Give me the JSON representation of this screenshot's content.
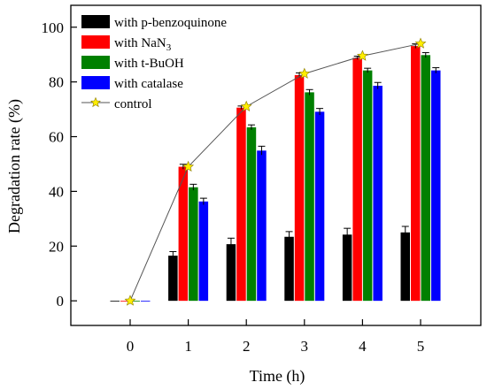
{
  "chart_data": {
    "type": "bar",
    "title": "",
    "xlabel": "Time (h)",
    "ylabel": "Degradation rate (%)",
    "categories": [
      "0",
      "1",
      "2",
      "3",
      "4",
      "5"
    ],
    "ylim": [
      -9,
      108
    ],
    "yticks": [
      0,
      20,
      40,
      60,
      80,
      100
    ],
    "grid": false,
    "legend_position": "top-left",
    "series": [
      {
        "name": "with p-benzoquinone",
        "type": "bar",
        "color": "#000000",
        "values": [
          0,
          16.5,
          20.7,
          23.4,
          24.2,
          25.0
        ],
        "errors": [
          0,
          1.5,
          2.2,
          1.9,
          2.3,
          2.2
        ]
      },
      {
        "name": "with NaN3",
        "name_main": "with NaN",
        "name_sub": "3",
        "type": "bar",
        "color": "#ff0000",
        "values": [
          0,
          49.0,
          70.6,
          82.5,
          88.8,
          93.1
        ],
        "errors": [
          0,
          0.9,
          0.6,
          0.8,
          0.6,
          0.8
        ]
      },
      {
        "name": "with t-BuOH",
        "type": "bar",
        "color": "#008000",
        "values": [
          0,
          41.5,
          63.4,
          76.2,
          84.2,
          89.8
        ],
        "errors": [
          0,
          1.1,
          0.9,
          1.0,
          0.8,
          0.9
        ]
      },
      {
        "name": "with catalase",
        "type": "bar",
        "color": "#0000ff",
        "values": [
          0,
          36.3,
          54.9,
          69.1,
          78.6,
          84.2
        ],
        "errors": [
          0,
          1.2,
          1.6,
          1.2,
          1.2,
          1.0
        ]
      },
      {
        "name": "control",
        "type": "line",
        "color": "#555555",
        "marker_color": "#ffee00",
        "values": [
          0,
          49.0,
          71.0,
          83.0,
          89.5,
          94.0
        ]
      }
    ]
  }
}
